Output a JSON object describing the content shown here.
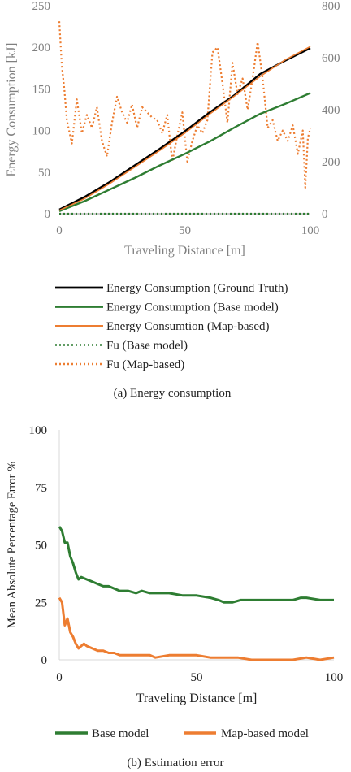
{
  "chart_data": [
    {
      "type": "line",
      "caption": "(a) Energy consumption",
      "xlabel": "Traveling Distance [m]",
      "ylabel": "Energy Consumption [kJ]",
      "xlim": [
        0,
        100
      ],
      "ylim": [
        0,
        250
      ],
      "y2lim": [
        0,
        800
      ],
      "xticks": [
        "0",
        "50",
        "100"
      ],
      "yticks": [
        "0",
        "50",
        "100",
        "150",
        "200",
        "250"
      ],
      "y2ticks": [
        "0",
        "200",
        "400",
        "600",
        "800"
      ],
      "grid": false,
      "legend_position": "bottom",
      "legend": [
        "Energy Consumption (Ground Truth)",
        "Energy Consumption (Base model)",
        "Energy Consumtion (Map-based)",
        "Fu (Base model)",
        "Fu (Map-based)"
      ],
      "series": [
        {
          "name": "Energy Consumption (Ground Truth)",
          "axis": "left",
          "style": "solid",
          "color": "#000000",
          "x": [
            0,
            10,
            20,
            30,
            40,
            50,
            60,
            70,
            80,
            90,
            100
          ],
          "y": [
            5,
            20,
            38,
            58,
            78,
            99,
            122,
            143,
            168,
            184,
            199
          ]
        },
        {
          "name": "Energy Consumption (Base model)",
          "axis": "left",
          "style": "solid",
          "color": "#2e7d32",
          "x": [
            0,
            10,
            20,
            30,
            40,
            50,
            60,
            70,
            80,
            90,
            100
          ],
          "y": [
            3,
            15,
            29,
            43,
            58,
            72,
            87,
            104,
            120,
            132,
            145
          ]
        },
        {
          "name": "Energy Consumtion (Map-based)",
          "axis": "left",
          "style": "solid",
          "color": "#ed7d31",
          "x": [
            0,
            10,
            20,
            30,
            40,
            50,
            60,
            70,
            80,
            90,
            100
          ],
          "y": [
            4,
            18,
            36,
            56,
            76,
            97,
            120,
            142,
            165,
            185,
            201
          ]
        },
        {
          "name": "Fu (Base model)",
          "axis": "right",
          "style": "dotted",
          "color": "#2e7d32",
          "x": [
            0,
            100
          ],
          "y": [
            0,
            0
          ]
        },
        {
          "name": "Fu (Map-based)",
          "axis": "right",
          "style": "dotted",
          "color": "#ed7d31",
          "x": [
            0,
            1,
            2,
            3,
            5,
            7,
            9,
            11,
            13,
            15,
            17,
            19,
            21,
            23,
            25,
            27,
            29,
            31,
            33,
            35,
            37,
            39,
            41,
            43,
            45,
            47,
            49,
            51,
            53,
            55,
            57,
            59,
            61,
            63,
            65,
            67,
            69,
            71,
            73,
            75,
            77,
            79,
            81,
            83,
            85,
            87,
            89,
            91,
            93,
            95,
            97,
            98,
            99,
            100
          ],
          "y": [
            740,
            570,
            480,
            360,
            270,
            440,
            310,
            380,
            330,
            410,
            280,
            220,
            350,
            450,
            390,
            350,
            420,
            330,
            410,
            390,
            370,
            360,
            310,
            380,
            200,
            300,
            390,
            200,
            280,
            340,
            310,
            360,
            620,
            640,
            500,
            350,
            580,
            460,
            520,
            400,
            520,
            660,
            520,
            330,
            360,
            280,
            320,
            280,
            340,
            230,
            320,
            100,
            290,
            330
          ]
        }
      ]
    },
    {
      "type": "line",
      "caption": "(b) Estimation error",
      "xlabel": "Traveling Distance [m]",
      "ylabel": "Mean Absolute Percentage Error %",
      "xlim": [
        0,
        100
      ],
      "ylim": [
        0,
        100
      ],
      "xticks": [
        "0",
        "50",
        "100"
      ],
      "yticks": [
        "0",
        "25",
        "50",
        "75",
        "100"
      ],
      "grid": false,
      "legend_position": "bottom",
      "legend": [
        "Base model",
        "Map-based model"
      ],
      "series": [
        {
          "name": "Base model",
          "style": "solid",
          "color": "#2e7d32",
          "x": [
            0,
            1,
            2,
            3,
            4,
            5,
            6,
            7,
            8,
            10,
            12,
            14,
            16,
            18,
            20,
            22,
            25,
            28,
            30,
            33,
            36,
            40,
            45,
            50,
            55,
            58,
            60,
            63,
            66,
            70,
            75,
            80,
            85,
            88,
            90,
            95,
            100
          ],
          "y": [
            58,
            56,
            51,
            51,
            45,
            42,
            38,
            35,
            36,
            35,
            34,
            33,
            32,
            32,
            31,
            30,
            30,
            29,
            30,
            29,
            29,
            29,
            28,
            28,
            27,
            26,
            25,
            25,
            26,
            26,
            26,
            26,
            26,
            27,
            27,
            26,
            26
          ]
        },
        {
          "name": "Map-based model",
          "style": "solid",
          "color": "#ed7d31",
          "x": [
            0,
            1,
            2,
            3,
            4,
            5,
            6,
            7,
            8,
            9,
            10,
            12,
            14,
            16,
            18,
            20,
            22,
            25,
            28,
            30,
            33,
            35,
            40,
            45,
            50,
            55,
            58,
            60,
            65,
            70,
            75,
            80,
            85,
            90,
            95,
            100
          ],
          "y": [
            27,
            25,
            15,
            18,
            12,
            10,
            7,
            5,
            6,
            7,
            6,
            5,
            4,
            4,
            3,
            3,
            2,
            2,
            2,
            2,
            2,
            1,
            2,
            2,
            2,
            1,
            1,
            1,
            1,
            0,
            0,
            0,
            0,
            1,
            0,
            1
          ]
        }
      ]
    }
  ]
}
